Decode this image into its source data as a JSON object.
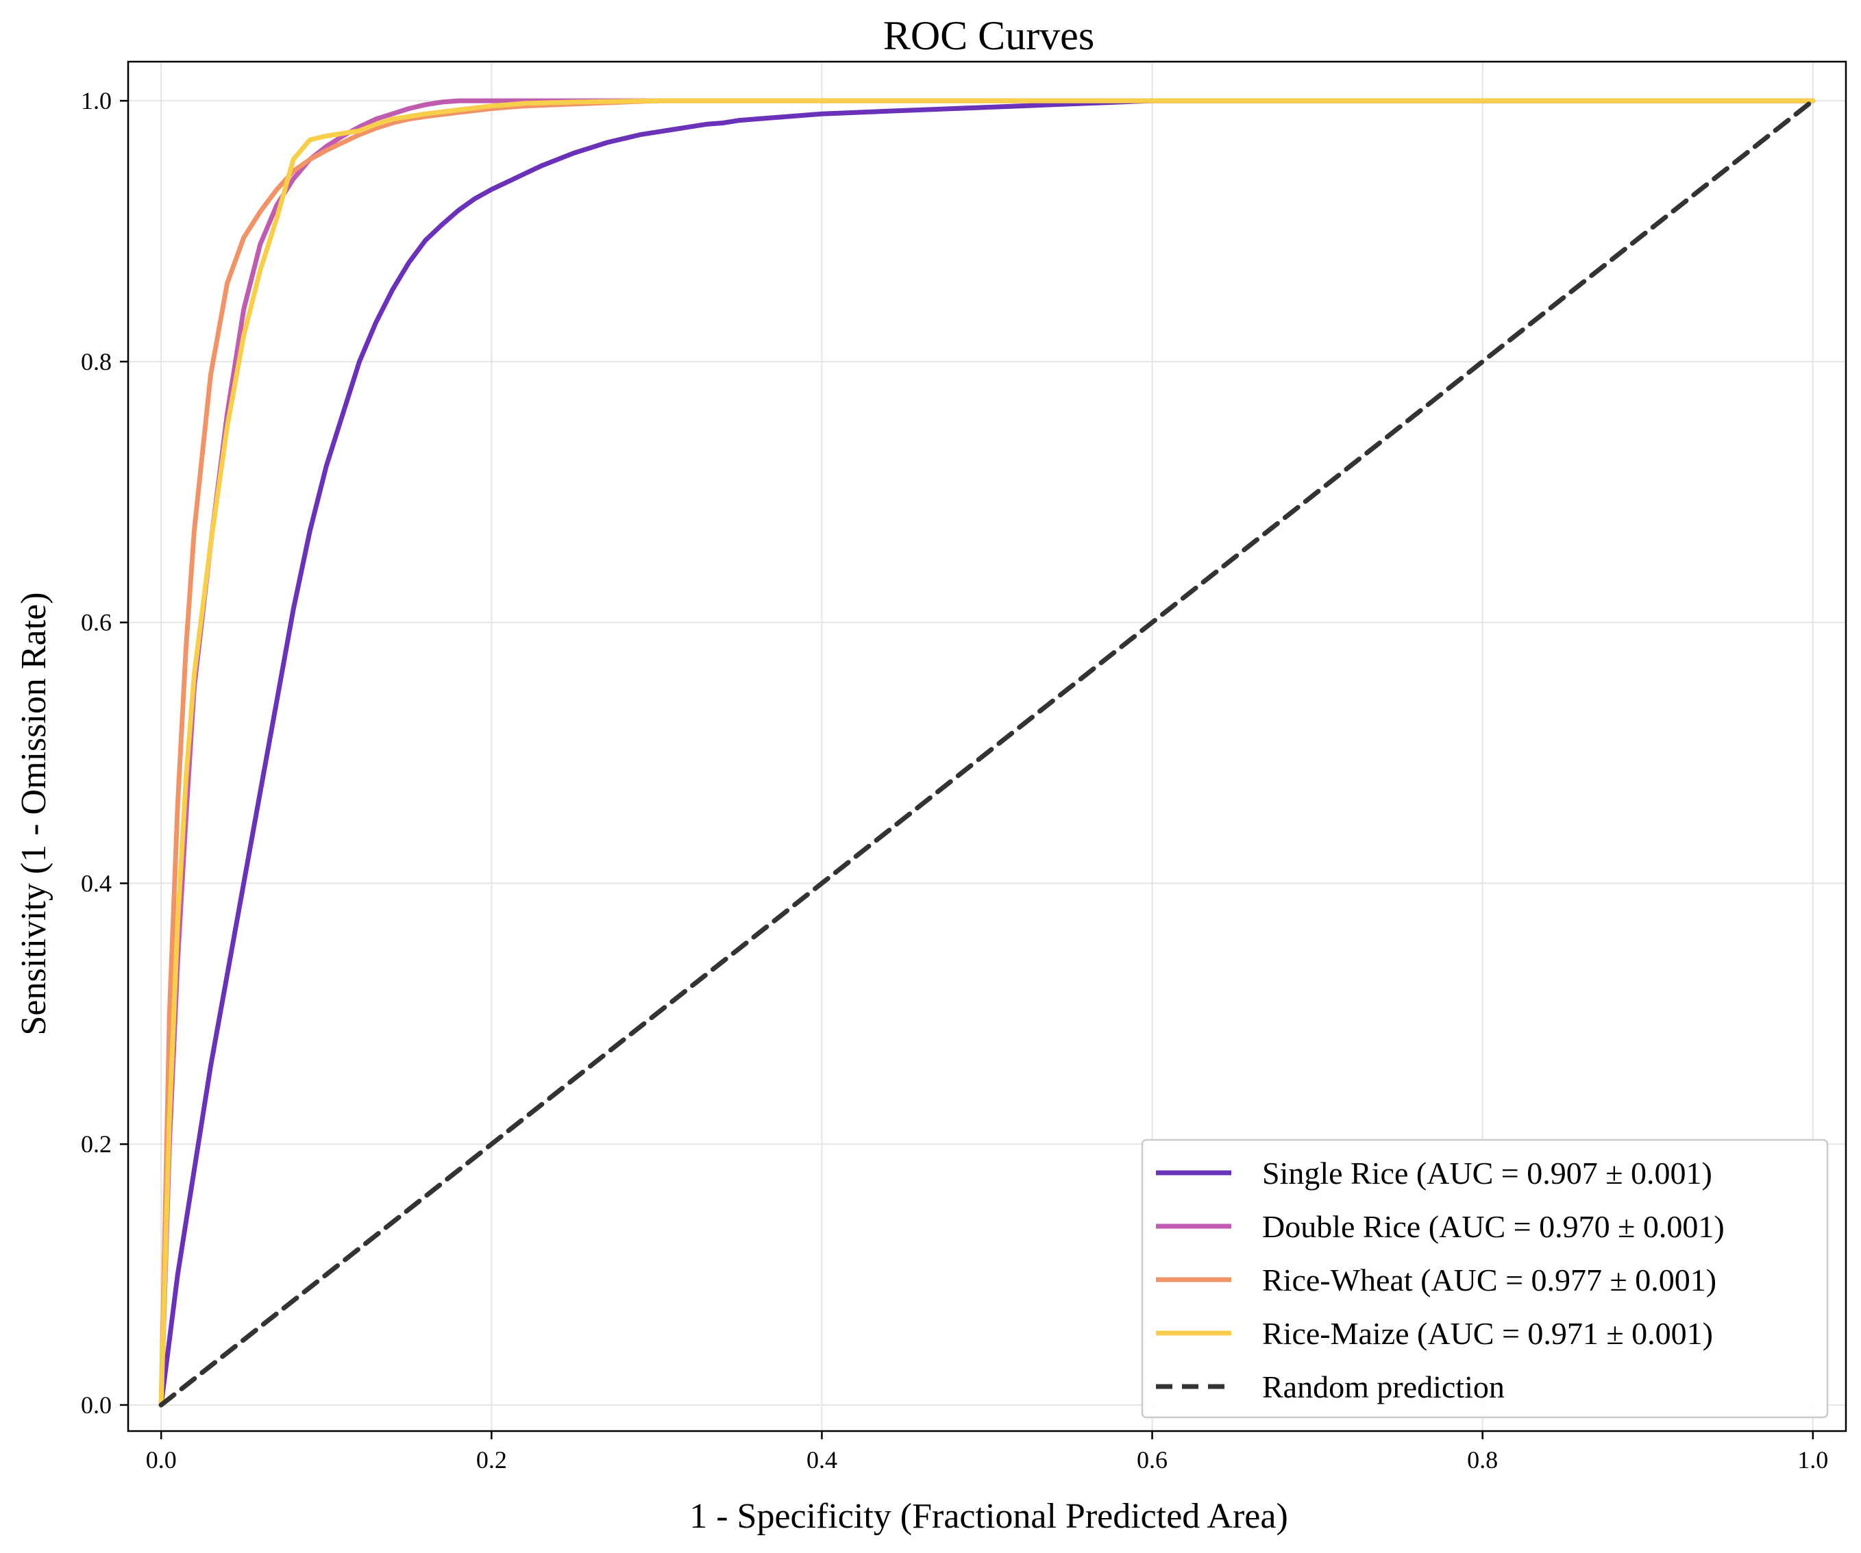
{
  "chart_data": {
    "type": "line",
    "title": "ROC Curves",
    "xlabel": "1 - Specificity (Fractional Predicted Area)",
    "ylabel": "Sensitivity (1 - Omission Rate)",
    "xlim": [
      -0.02,
      1.02
    ],
    "ylim": [
      -0.02,
      1.03
    ],
    "xticks": [
      0.0,
      0.2,
      0.4,
      0.6,
      0.8,
      1.0
    ],
    "yticks": [
      0.0,
      0.2,
      0.4,
      0.6,
      0.8,
      1.0
    ],
    "xtick_labels": [
      "0.0",
      "0.2",
      "0.4",
      "0.6",
      "0.8",
      "1.0"
    ],
    "ytick_labels": [
      "0.0",
      "0.2",
      "0.4",
      "0.6",
      "0.8",
      "1.0"
    ],
    "grid": true,
    "legend_position": "bottom-right",
    "series": [
      {
        "name": "Single Rice (AUC = 0.907 ± 0.001)",
        "color": "#6a32b8",
        "dash": "solid",
        "x": [
          0,
          0.005,
          0.01,
          0.02,
          0.03,
          0.04,
          0.05,
          0.06,
          0.07,
          0.08,
          0.09,
          0.1,
          0.11,
          0.12,
          0.13,
          0.14,
          0.15,
          0.16,
          0.17,
          0.18,
          0.19,
          0.2,
          0.21,
          0.22,
          0.23,
          0.24,
          0.25,
          0.26,
          0.27,
          0.28,
          0.29,
          0.3,
          0.31,
          0.32,
          0.33,
          0.34,
          0.35,
          0.36,
          0.37,
          0.38,
          0.39,
          0.4,
          0.42,
          0.44,
          0.46,
          0.48,
          0.5,
          0.52,
          0.54,
          0.56,
          0.58,
          0.6,
          1.0
        ],
        "y": [
          0,
          0.05,
          0.1,
          0.18,
          0.26,
          0.33,
          0.4,
          0.47,
          0.54,
          0.61,
          0.67,
          0.72,
          0.76,
          0.8,
          0.83,
          0.855,
          0.876,
          0.893,
          0.905,
          0.916,
          0.925,
          0.932,
          0.938,
          0.944,
          0.95,
          0.955,
          0.96,
          0.964,
          0.968,
          0.971,
          0.974,
          0.976,
          0.978,
          0.98,
          0.982,
          0.983,
          0.985,
          0.986,
          0.987,
          0.988,
          0.989,
          0.99,
          0.991,
          0.992,
          0.993,
          0.994,
          0.995,
          0.996,
          0.997,
          0.998,
          0.999,
          1.0,
          1.0
        ]
      },
      {
        "name": "Double Rice (AUC = 0.970 ± 0.001)",
        "color": "#c05cb0",
        "dash": "solid",
        "x": [
          0,
          0.005,
          0.01,
          0.015,
          0.02,
          0.03,
          0.04,
          0.05,
          0.06,
          0.07,
          0.08,
          0.09,
          0.1,
          0.11,
          0.12,
          0.13,
          0.14,
          0.15,
          0.16,
          0.17,
          0.18,
          0.2,
          0.3,
          0.5,
          1.0
        ],
        "y": [
          0,
          0.2,
          0.34,
          0.45,
          0.55,
          0.66,
          0.76,
          0.84,
          0.89,
          0.92,
          0.94,
          0.955,
          0.965,
          0.973,
          0.98,
          0.986,
          0.99,
          0.994,
          0.997,
          0.999,
          1.0,
          1.0,
          1.0,
          1.0,
          1.0
        ]
      },
      {
        "name": "Rice-Wheat (AUC = 0.977 ± 0.001)",
        "color": "#f09468",
        "dash": "solid",
        "x": [
          0,
          0.005,
          0.01,
          0.015,
          0.02,
          0.03,
          0.04,
          0.05,
          0.06,
          0.07,
          0.08,
          0.09,
          0.1,
          0.11,
          0.12,
          0.13,
          0.14,
          0.15,
          0.16,
          0.18,
          0.2,
          0.22,
          0.24,
          0.26,
          0.28,
          0.3,
          0.4,
          0.5,
          1.0
        ],
        "y": [
          0,
          0.3,
          0.46,
          0.58,
          0.67,
          0.79,
          0.86,
          0.895,
          0.915,
          0.932,
          0.946,
          0.955,
          0.962,
          0.968,
          0.974,
          0.979,
          0.983,
          0.986,
          0.988,
          0.991,
          0.994,
          0.996,
          0.997,
          0.998,
          0.999,
          1.0,
          1.0,
          1.0,
          1.0
        ]
      },
      {
        "name": "Rice-Maize (AUC = 0.971 ± 0.001)",
        "color": "#f8cf4a",
        "dash": "solid",
        "x": [
          0,
          0.005,
          0.01,
          0.015,
          0.02,
          0.03,
          0.04,
          0.05,
          0.06,
          0.07,
          0.08,
          0.09,
          0.1,
          0.11,
          0.12,
          0.13,
          0.14,
          0.16,
          0.18,
          0.2,
          0.22,
          0.25,
          0.3,
          0.5,
          1.0
        ],
        "y": [
          0,
          0.22,
          0.37,
          0.48,
          0.56,
          0.66,
          0.75,
          0.82,
          0.87,
          0.91,
          0.955,
          0.97,
          0.973,
          0.975,
          0.977,
          0.982,
          0.986,
          0.99,
          0.993,
          0.996,
          0.998,
          0.999,
          1.0,
          1.0,
          1.0
        ]
      },
      {
        "name": "Random prediction",
        "color": "#333333",
        "dash": "dashed",
        "x": [
          0,
          1
        ],
        "y": [
          0,
          1
        ]
      }
    ]
  }
}
